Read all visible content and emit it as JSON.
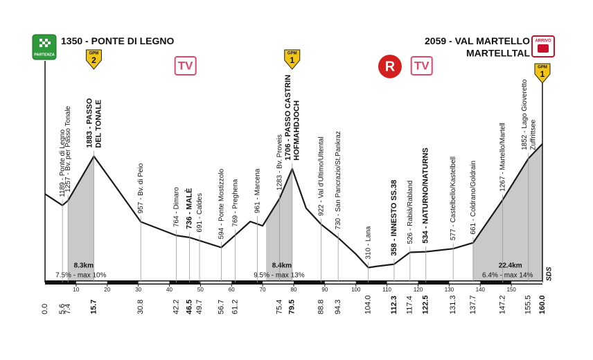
{
  "chart_data": {
    "type": "area",
    "separator": " - ",
    "xlim": [
      0,
      160
    ],
    "ylim": [
      100,
      3700
    ],
    "xticks": [
      10,
      20,
      30,
      40,
      50,
      60,
      70,
      80,
      90,
      100,
      110,
      120,
      130,
      140,
      150
    ],
    "logo": "SDS",
    "gpm_label": "GPM",
    "start": {
      "altitude": 1350,
      "name": [
        "PONTE DI LEGNO"
      ],
      "badge": "PARTENZA"
    },
    "finish": {
      "altitude": 2059,
      "name": [
        "VAL MARTELLO",
        "MARTELLTAL"
      ],
      "badge": "ARRIVO",
      "gpm": 1
    },
    "profile": {
      "color": "#1a1a1a",
      "x": [
        0,
        5.6,
        7.4,
        15.7,
        22,
        30.8,
        42.2,
        46.5,
        49.7,
        56.7,
        61.2,
        66,
        70,
        75.4,
        79.5,
        84,
        88.8,
        94.3,
        100,
        104,
        107,
        112.3,
        117.4,
        122.5,
        131.3,
        137.7,
        147.2,
        155.5,
        160
      ],
      "values": [
        1350,
        1189,
        1257,
        1883,
        1500,
        957,
        764,
        736,
        691,
        594,
        769,
        961,
        900,
        1283,
        1706,
        1150,
        922,
        730,
        500,
        310,
        330,
        358,
        526,
        534,
        577,
        661,
        1267,
        1852,
        2059
      ]
    },
    "climbs": [
      {
        "summit_km": 15.7,
        "length": 8.3,
        "length_label": "8.3km",
        "gradient": "7.5% - max 10%"
      },
      {
        "summit_km": 79.5,
        "length": 8.4,
        "length_label": "8.4km",
        "gradient": "9.5% - max 13%"
      },
      {
        "summit_km": 160,
        "length": 22.4,
        "length_label": "22.4km",
        "gradient": "6.4% - max 14%"
      }
    ],
    "waypoints": [
      {
        "km": {
          "value": 0,
          "label": "0.0"
        }
      },
      {
        "km": 5.6,
        "altitude": 1189,
        "name": [
          "Ponte di Legno"
        ]
      },
      {
        "km": 7.4,
        "altitude": 1257,
        "name": [
          "Bv. per Passo Tonale"
        ]
      },
      {
        "km": 15.7,
        "altitude": 1883,
        "name": [
          "PASSO",
          "DEL TONALE"
        ],
        "bold": true,
        "gpm": 2
      },
      {
        "km": 30.8,
        "altitude": 957,
        "name": [
          "Bv. di Peio"
        ]
      },
      {
        "km": 42.2,
        "altitude": 764,
        "name": [
          "Dimaro"
        ]
      },
      {
        "km": 46.5,
        "altitude": 736,
        "name": [
          "MALÈ"
        ],
        "bold": true,
        "tv": "TV"
      },
      {
        "km": 49.7,
        "altitude": 691,
        "name": [
          "Caldes"
        ]
      },
      {
        "km": 56.7,
        "altitude": 594,
        "name": [
          "Ponte Mostizzolo"
        ]
      },
      {
        "km": 61.2,
        "altitude": 769,
        "name": [
          "Preghena"
        ]
      },
      {
        "km": null,
        "altitude": 961,
        "name": [
          "Marcena"
        ]
      },
      {
        "km": 75.4,
        "altitude": 1283,
        "name": [
          "Bv. Proveis"
        ]
      },
      {
        "km": 79.5,
        "altitude": 1706,
        "name": [
          "PASSO CASTRIN",
          "HOFMAHDJOCH"
        ],
        "bold": true,
        "gpm": 1
      },
      {
        "km": 88.8,
        "altitude": 922,
        "name": [
          "Val d'Ultimo/Ultental"
        ]
      },
      {
        "km": 94.3,
        "altitude": 730,
        "name": [
          "San Pancrazio/St.Pankraz"
        ]
      },
      {
        "km": {
          "value": 104,
          "label": "104.0"
        },
        "altitude": 310,
        "name": [
          "Lana"
        ]
      },
      {
        "km": 112.3,
        "altitude": 358,
        "name": [
          "INNESTO SS.38"
        ],
        "bold": true,
        "service": "R"
      },
      {
        "km": 117.4,
        "altitude": 526,
        "name": [
          "Rabià/Rabland"
        ]
      },
      {
        "km": 122.5,
        "altitude": 534,
        "name": [
          "NATURNO/NATURNS"
        ],
        "bold": true,
        "tv": "TV"
      },
      {
        "km": 131.3,
        "altitude": 577,
        "name": [
          "Castelbello/Kastelbell"
        ]
      },
      {
        "km": 137.7,
        "altitude": 661,
        "name": [
          "Coldrano/Goldrain"
        ]
      },
      {
        "km": 147.2,
        "altitude": 1267,
        "name": [
          "Martello/Martell"
        ]
      },
      {
        "km": 155.5,
        "altitude": 1852,
        "name": [
          "Lago Gioveretto",
          "Zuffrittsee"
        ]
      },
      {
        "km": {
          "value": 160,
          "label": "160.0"
        },
        "bold": true
      }
    ]
  }
}
